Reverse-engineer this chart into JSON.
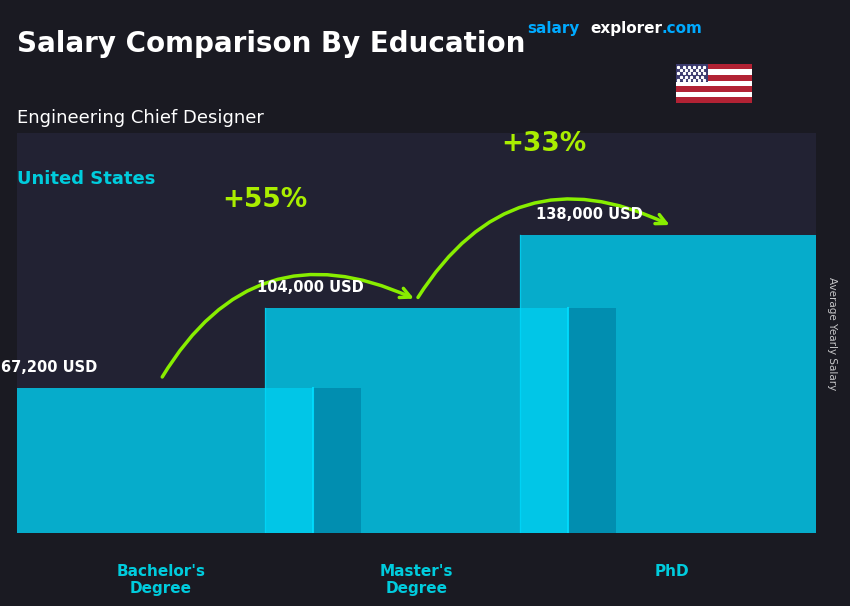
{
  "title": "Salary Comparison By Education",
  "subtitle": "Engineering Chief Designer",
  "country": "United States",
  "categories": [
    "Bachelor's\nDegree",
    "Master's\nDegree",
    "PhD"
  ],
  "values": [
    67200,
    104000,
    138000
  ],
  "value_labels": [
    "67,200 USD",
    "104,000 USD",
    "138,000 USD"
  ],
  "pct_labels": [
    "+55%",
    "+33%"
  ],
  "bar_face_color": "#00ccee",
  "bar_side_color": "#0088aa",
  "bar_edge_color": "#00ddff",
  "bar_alpha": 0.82,
  "bg_color": "#222233",
  "title_color": "#ffffff",
  "subtitle_color": "#ffffff",
  "country_color": "#00ccdd",
  "value_color": "#ffffff",
  "pct_color": "#aaee00",
  "xlabel_color": "#00ccdd",
  "arrow_color": "#88ee00",
  "ylabel_text": "Average Yearly Salary",
  "watermark_salary_color": "#00aaff",
  "watermark_explorer_color": "#ffffff",
  "watermark_com_color": "#00aaff",
  "bar_width": 0.38,
  "bar_depth": 0.06,
  "ylim": [
    0,
    185000
  ],
  "x_positions": [
    0.18,
    0.5,
    0.82
  ],
  "figsize": [
    8.5,
    6.06
  ],
  "dpi": 100
}
